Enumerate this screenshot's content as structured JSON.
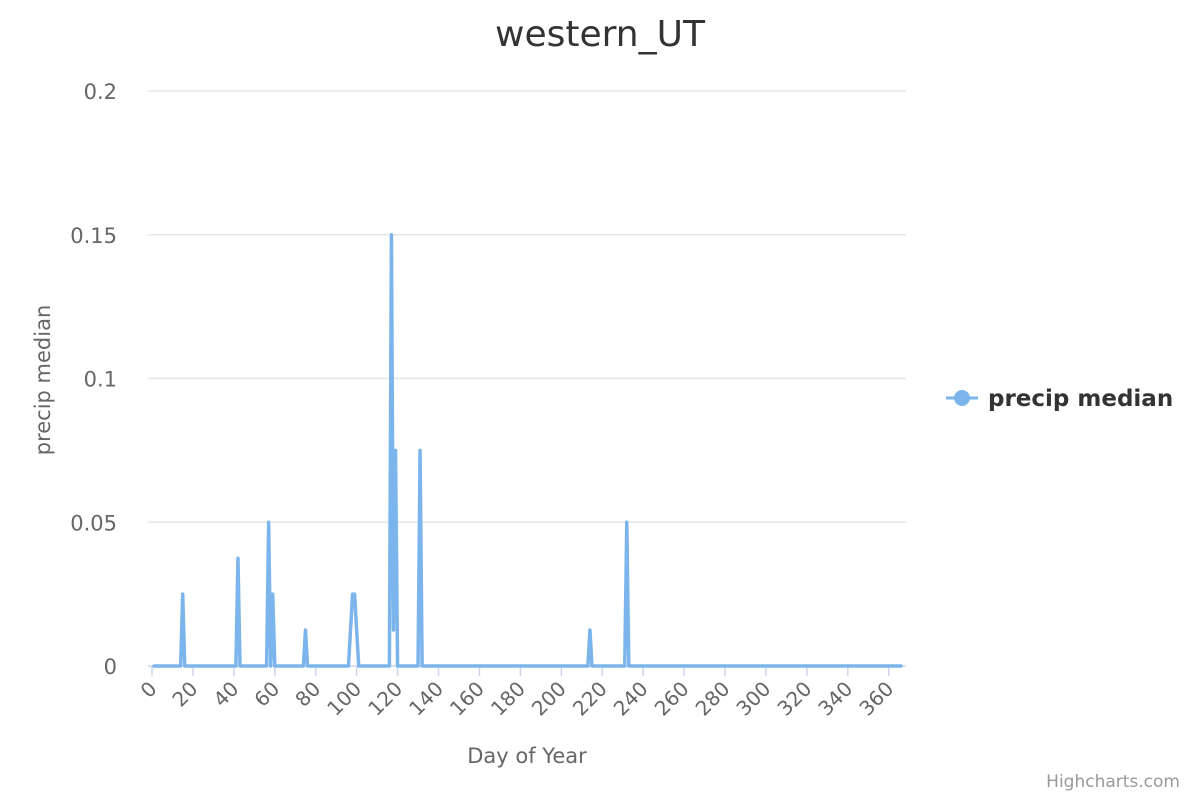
{
  "chart_data": {
    "type": "line",
    "title": "western_UT",
    "xlabel": "Day of Year",
    "ylabel": "precip median",
    "xlim": [
      0,
      366
    ],
    "ylim": [
      0,
      0.2
    ],
    "xticks": [
      0,
      20,
      40,
      60,
      80,
      100,
      120,
      140,
      160,
      180,
      200,
      220,
      240,
      260,
      280,
      300,
      320,
      340,
      360
    ],
    "yticks": [
      0,
      0.05,
      0.1,
      0.15,
      0.2
    ],
    "ytick_labels": [
      "0",
      "0.05",
      "0.1",
      "0.15",
      "0.2"
    ],
    "grid": "horizontal",
    "legend_position": "right",
    "series": [
      {
        "name": "precip median",
        "color": "#7cb5ec",
        "points": [
          [
            1,
            0
          ],
          [
            14,
            0
          ],
          [
            15,
            0.025
          ],
          [
            16,
            0
          ],
          [
            41,
            0
          ],
          [
            42,
            0.0375
          ],
          [
            43,
            0
          ],
          [
            56,
            0
          ],
          [
            57,
            0.05
          ],
          [
            58,
            0
          ],
          [
            59,
            0.025
          ],
          [
            60,
            0
          ],
          [
            74,
            0
          ],
          [
            75,
            0.0125
          ],
          [
            76,
            0
          ],
          [
            96,
            0
          ],
          [
            98,
            0.025
          ],
          [
            99,
            0.025
          ],
          [
            101,
            0
          ],
          [
            116,
            0
          ],
          [
            117,
            0.15
          ],
          [
            118,
            0.0125
          ],
          [
            119,
            0.075
          ],
          [
            120,
            0
          ],
          [
            130,
            0
          ],
          [
            131,
            0.075
          ],
          [
            132,
            0
          ],
          [
            213,
            0
          ],
          [
            214,
            0.0125
          ],
          [
            215,
            0
          ],
          [
            231,
            0
          ],
          [
            232,
            0.05
          ],
          [
            233,
            0
          ],
          [
            366,
            0
          ]
        ]
      }
    ]
  },
  "credits": "Highcharts.com"
}
